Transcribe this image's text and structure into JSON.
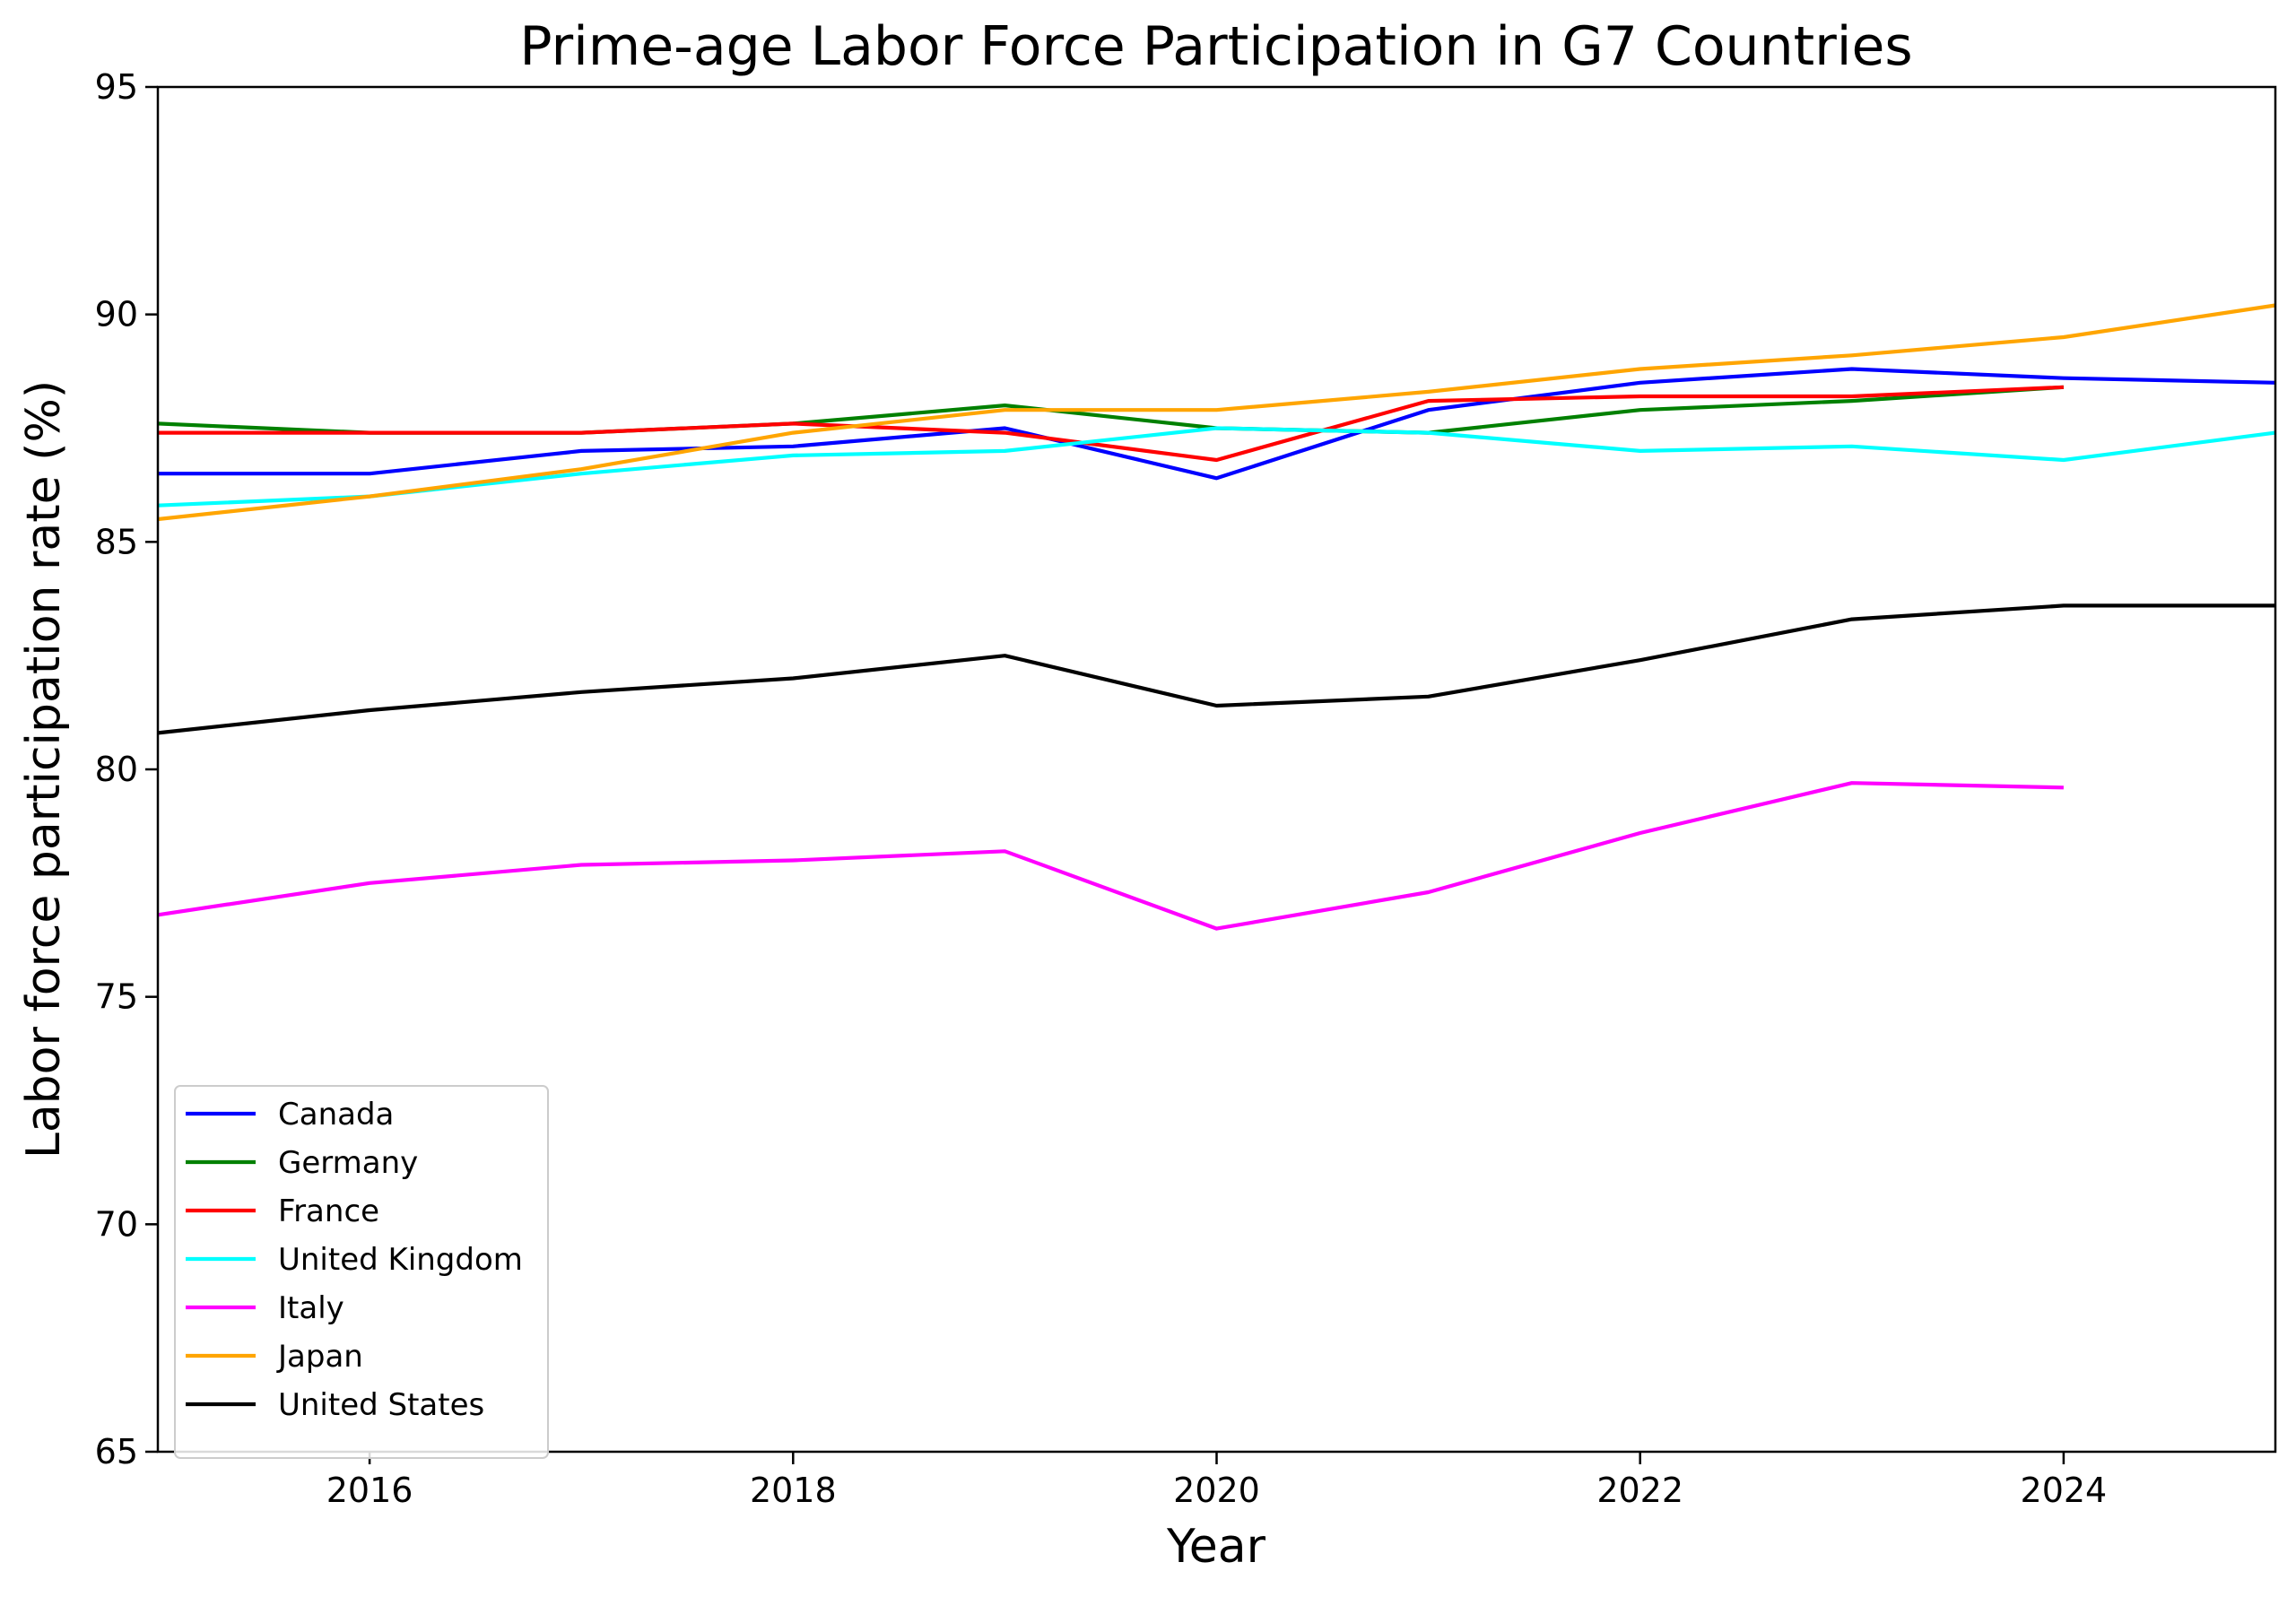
{
  "chart_data": {
    "type": "line",
    "title": "Prime-age Labor Force Participation in G7 Countries",
    "xlabel": "Year",
    "ylabel": "Labor force participation rate (%)",
    "xlim": [
      2015,
      2025
    ],
    "ylim": [
      65,
      95
    ],
    "xticks": [
      "2016",
      "2018",
      "2020",
      "2022",
      "2024"
    ],
    "yticks": [
      "65",
      "70",
      "75",
      "80",
      "85",
      "90",
      "95"
    ],
    "grid": false,
    "legend_position": "lower-left",
    "series": [
      {
        "name": "Canada",
        "color": "#0000ff",
        "x": [
          2015,
          2016,
          2017,
          2018,
          2019,
          2020,
          2021,
          2022,
          2023,
          2024,
          2025
        ],
        "y": [
          86.5,
          86.5,
          87.0,
          87.1,
          87.5,
          86.4,
          87.9,
          88.5,
          88.8,
          88.6,
          88.5
        ]
      },
      {
        "name": "Germany",
        "color": "#008000",
        "x": [
          2015,
          2016,
          2017,
          2018,
          2019,
          2020,
          2021,
          2022,
          2023,
          2024
        ],
        "y": [
          87.6,
          87.4,
          87.4,
          87.6,
          88.0,
          87.5,
          87.4,
          87.9,
          88.1,
          88.4
        ]
      },
      {
        "name": "France",
        "color": "#ff0000",
        "x": [
          2015,
          2016,
          2017,
          2018,
          2019,
          2020,
          2021,
          2022,
          2023,
          2024
        ],
        "y": [
          87.4,
          87.4,
          87.4,
          87.6,
          87.4,
          86.8,
          88.1,
          88.2,
          88.2,
          88.4
        ]
      },
      {
        "name": "United Kingdom",
        "color": "#00ffff",
        "x": [
          2015,
          2016,
          2017,
          2018,
          2019,
          2020,
          2021,
          2022,
          2023,
          2024,
          2025
        ],
        "y": [
          85.8,
          86.0,
          86.5,
          86.9,
          87.0,
          87.5,
          87.4,
          87.0,
          87.1,
          86.8,
          87.4
        ]
      },
      {
        "name": "Italy",
        "color": "#ff00ff",
        "x": [
          2015,
          2016,
          2017,
          2018,
          2019,
          2020,
          2021,
          2022,
          2023,
          2024
        ],
        "y": [
          76.8,
          77.5,
          77.9,
          78.0,
          78.2,
          76.5,
          77.3,
          78.6,
          79.7,
          79.6
        ]
      },
      {
        "name": "Japan",
        "color": "#ffa500",
        "x": [
          2015,
          2016,
          2017,
          2018,
          2019,
          2020,
          2021,
          2022,
          2023,
          2024,
          2025
        ],
        "y": [
          85.5,
          86.0,
          86.6,
          87.4,
          87.9,
          87.9,
          88.3,
          88.8,
          89.1,
          89.5,
          90.2
        ]
      },
      {
        "name": "United States",
        "color": "#000000",
        "x": [
          2015,
          2016,
          2017,
          2018,
          2019,
          2020,
          2021,
          2022,
          2023,
          2024,
          2025
        ],
        "y": [
          80.8,
          81.3,
          81.7,
          82.0,
          82.5,
          81.4,
          81.6,
          82.4,
          83.3,
          83.6,
          83.6
        ]
      }
    ]
  }
}
